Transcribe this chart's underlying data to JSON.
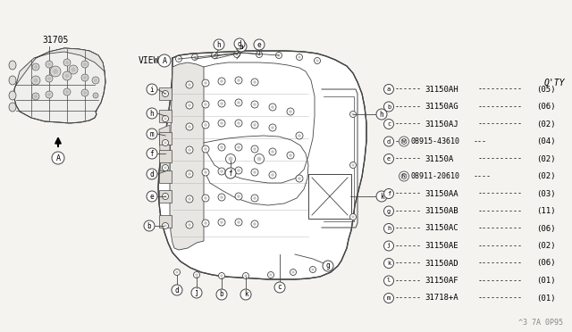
{
  "bg_color": "#f5f3f0",
  "part_number": "31705",
  "view_label": "VIEW",
  "diagram_code": "^3 7A 0P95",
  "qty_header": "Q'TY",
  "line_color": "#444444",
  "body_fill": "#f0eeeb",
  "body_edge": "#555555",
  "parts_list": [
    {
      "label": "a",
      "part": "31150AH",
      "qty": "(05)"
    },
    {
      "label": "b",
      "part": "31150AG",
      "qty": "(06)"
    },
    {
      "label": "c",
      "part": "31150AJ",
      "qty": "(02)"
    },
    {
      "label": "d",
      "part_prefix": "W",
      "part": "08915-43610",
      "qty": "(04)"
    },
    {
      "label": "e",
      "part": "31150A",
      "qty": "(02)"
    },
    {
      "label": " ",
      "part_prefix": "N",
      "part": "08911-20610",
      "qty": "(02)"
    },
    {
      "label": "f",
      "part": "31150AA",
      "qty": "(03)"
    },
    {
      "label": "g",
      "part": "31150AB",
      "qty": "(11)"
    },
    {
      "label": "h",
      "part": "31150AC",
      "qty": "(06)"
    },
    {
      "label": "j",
      "part": "31150AE",
      "qty": "(02)"
    },
    {
      "label": "k",
      "part": "31150AD",
      "qty": "(06)"
    },
    {
      "label": "l",
      "part": "31150AF",
      "qty": "(01)"
    },
    {
      "label": "m",
      "part": "31718+A",
      "qty": "(01)"
    }
  ]
}
